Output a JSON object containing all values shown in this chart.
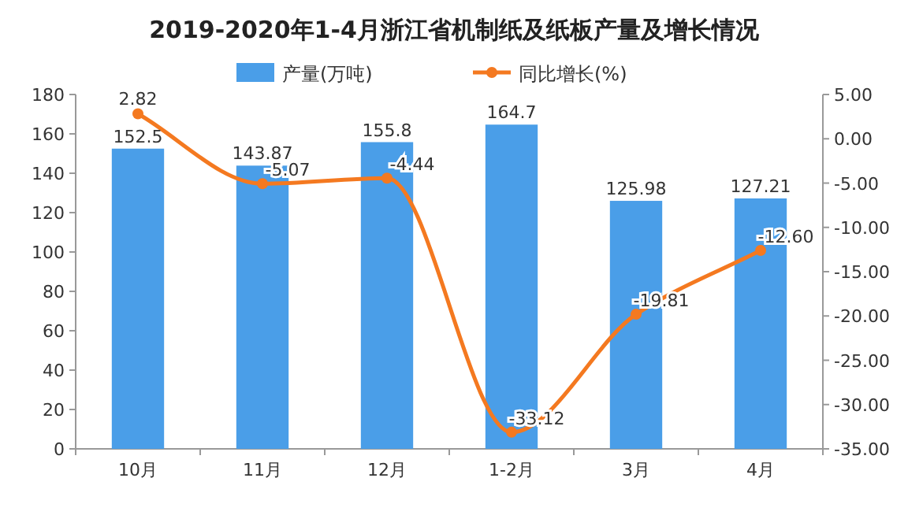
{
  "chart_data": {
    "type": "bar",
    "title": "2019-2020年1-4月浙江省机制纸及纸板产量及增长情况",
    "categories": [
      "10月",
      "11月",
      "12月",
      "1-2月",
      "3月",
      "4月"
    ],
    "series": [
      {
        "name": "产量(万吨)",
        "color": "#4a9ee8",
        "values": [
          152.5,
          143.87,
          155.8,
          164.7,
          125.98,
          127.21
        ],
        "value_labels": [
          "152.5",
          "143.87",
          "155.8",
          "164.7",
          "125.98",
          "127.21"
        ]
      },
      {
        "name": "同比增长(%)",
        "type": "line",
        "axis": "y2",
        "color": "#f47920",
        "marker": "circle",
        "values": [
          2.82,
          -5.07,
          -4.44,
          -33.12,
          -19.81,
          -12.6
        ],
        "value_labels": [
          "2.82",
          "-5.07",
          "-4.44",
          "-33.12",
          "-19.81",
          "-12.60"
        ]
      }
    ],
    "ylim": [
      0,
      180
    ],
    "yticks": [
      0,
      20,
      40,
      60,
      80,
      100,
      120,
      140,
      160,
      180
    ],
    "y2lim": [
      -35,
      5
    ],
    "y2ticks": [
      {
        "value": 5,
        "label": "5.00"
      },
      {
        "value": 0,
        "label": "0.00"
      },
      {
        "value": -5,
        "label": "-5.00"
      },
      {
        "value": -10,
        "label": "-10.00"
      },
      {
        "value": -15,
        "label": "-15.00"
      },
      {
        "value": -20,
        "label": "-20.00"
      },
      {
        "value": -25,
        "label": "-25.00"
      },
      {
        "value": -30,
        "label": "-30.00"
      },
      {
        "value": -35,
        "label": "-35.00"
      }
    ],
    "legend": "top",
    "grid": false
  }
}
